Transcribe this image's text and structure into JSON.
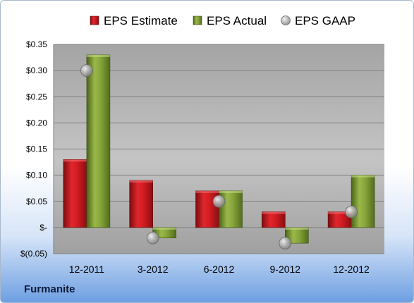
{
  "company": "Furmanite",
  "colors": {
    "estimate": "#c0161c",
    "actual": "#7a9a30",
    "gaap": "#a8a8a8",
    "plot_bg": "#a6a6a6",
    "grid": "#7f7f7f"
  },
  "chart_data": {
    "type": "bar",
    "title": "",
    "xlabel": "",
    "ylabel": "",
    "categories": [
      "12-2011",
      "3-2012",
      "6-2012",
      "9-2012",
      "12-2012"
    ],
    "series": [
      {
        "name": "EPS Estimate",
        "kind": "bar",
        "values": [
          0.13,
          0.09,
          0.07,
          0.03,
          0.03
        ]
      },
      {
        "name": "EPS Actual",
        "kind": "bar",
        "values": [
          0.33,
          -0.02,
          0.07,
          -0.03,
          0.1
        ]
      },
      {
        "name": "EPS GAAP",
        "kind": "marker",
        "values": [
          0.3,
          -0.02,
          0.05,
          -0.03,
          0.03
        ]
      }
    ],
    "ylim": [
      -0.05,
      0.35
    ],
    "yticks": [
      0.35,
      0.3,
      0.25,
      0.2,
      0.15,
      0.1,
      0.05,
      0,
      -0.05
    ],
    "ytick_labels": [
      "$0.35",
      "$0.30",
      "$0.25",
      "$0.20",
      "$0.15",
      "$0.10",
      "$0.05",
      "$-",
      "$(0.05)"
    ],
    "grid": true,
    "legend_position": "top"
  }
}
